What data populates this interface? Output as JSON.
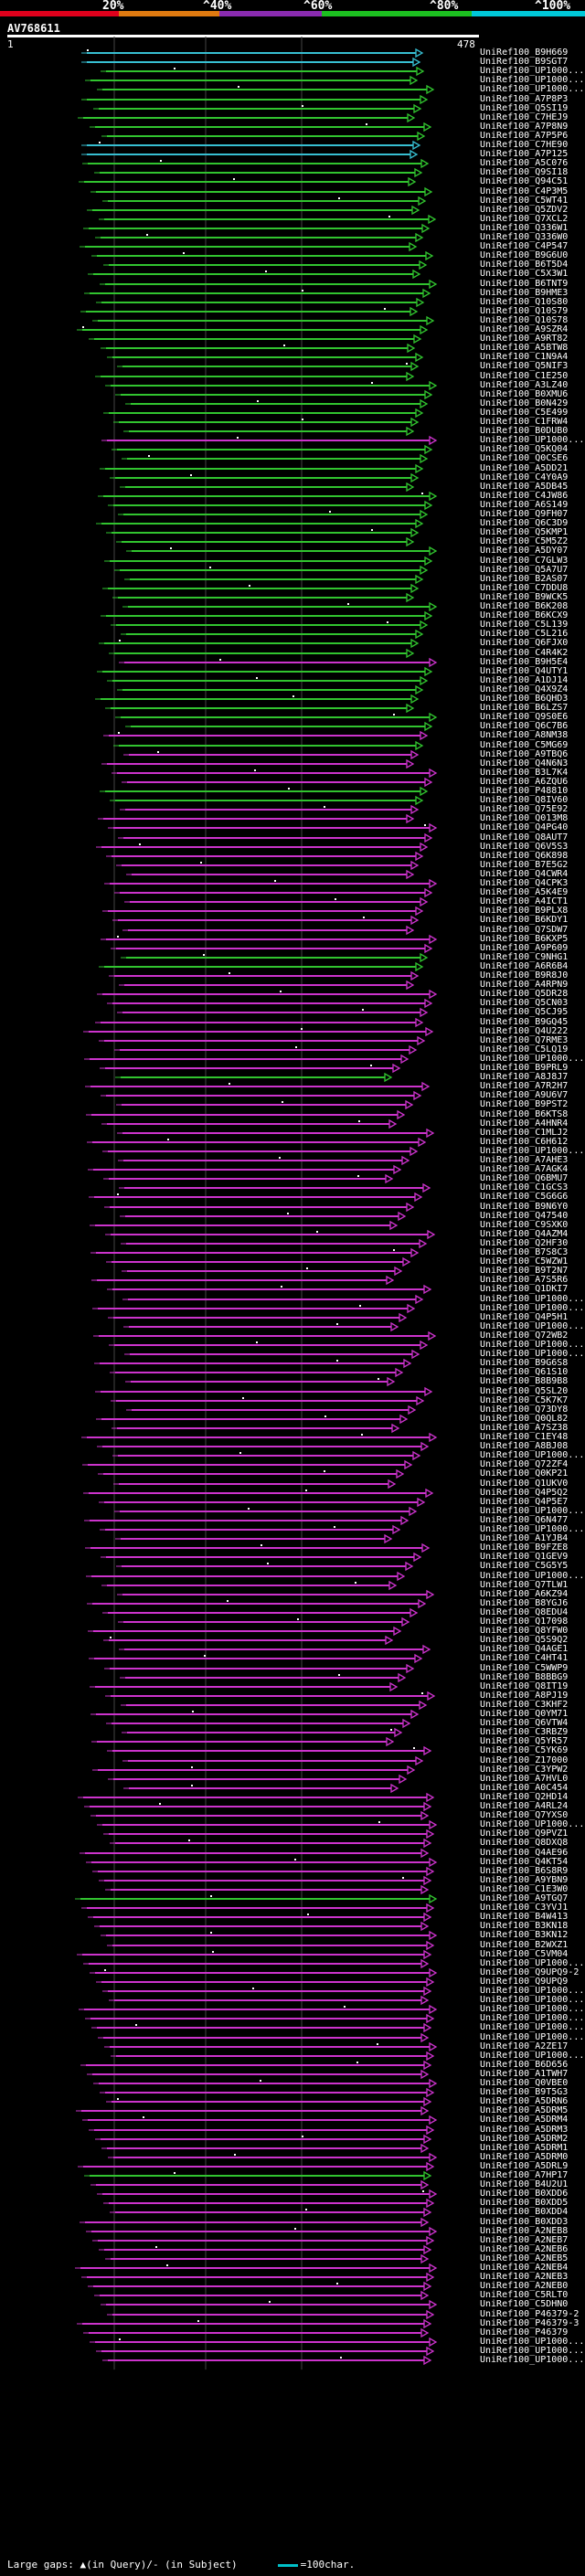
{
  "header": {
    "scale_ticks": [
      "20%",
      "^40%",
      "^60%",
      "^80%",
      "^100%"
    ],
    "band_colors": [
      "#e0001c",
      "#e07a10",
      "#8a2bb0",
      "#1cc020",
      "#00c8d8"
    ]
  },
  "query": {
    "name": "AV768611",
    "start": "1",
    "end": "478"
  },
  "legend": {
    "text": "Large gaps: ▲(in Query)/- (in Subject)",
    "scale_text": "=100char."
  },
  "colors": {
    "cyan": "#37bfd2",
    "green": "#31c42f",
    "magenta": "#cc33cc",
    "white_line": "#ffffff"
  },
  "hits": [
    {
      "label": "UniRef100_B9H669",
      "color": "cyan"
    },
    {
      "label": "UniRef100_B9SGT7",
      "color": "cyan"
    },
    {
      "label": "UniRef100_UP1000...",
      "color": "green"
    },
    {
      "label": "UniRef100_UP1000...",
      "color": "green"
    },
    {
      "label": "UniRef100_UP1000...",
      "color": "green"
    },
    {
      "label": "UniRef100_A7P8P3",
      "color": "green"
    },
    {
      "label": "UniRef100_Q5SI19",
      "color": "green"
    },
    {
      "label": "UniRef100_C7HEJ9",
      "color": "green"
    },
    {
      "label": "UniRef100_A7P8N9",
      "color": "green"
    },
    {
      "label": "UniRef100_A7P5P6",
      "color": "green"
    },
    {
      "label": "UniRef100_C7HE90",
      "color": "cyan"
    },
    {
      "label": "UniRef100_A7P125",
      "color": "cyan"
    },
    {
      "label": "UniRef100_A5C076",
      "color": "green"
    },
    {
      "label": "UniRef100_Q9SI18",
      "color": "green"
    },
    {
      "label": "UniRef100_Q94C51",
      "color": "green"
    },
    {
      "label": "UniRef100_C4P3M5",
      "color": "green"
    },
    {
      "label": "UniRef100_C5WT41",
      "color": "green"
    },
    {
      "label": "UniRef100_Q5ZDV2",
      "color": "green"
    },
    {
      "label": "UniRef100_Q7XCL2",
      "color": "green"
    },
    {
      "label": "UniRef100_Q336W1",
      "color": "green"
    },
    {
      "label": "UniRef100_Q336W0",
      "color": "green"
    },
    {
      "label": "UniRef100_C4P547",
      "color": "green"
    },
    {
      "label": "UniRef100_B9G6U0",
      "color": "green"
    },
    {
      "label": "UniRef100_B6T5D4",
      "color": "green"
    },
    {
      "label": "UniRef100_C5X3W1",
      "color": "green"
    },
    {
      "label": "UniRef100_B6TNT9",
      "color": "green"
    },
    {
      "label": "UniRef100_B9HME3",
      "color": "green"
    },
    {
      "label": "UniRef100_Q10S80",
      "color": "green"
    },
    {
      "label": "UniRef100_Q10S79",
      "color": "green"
    },
    {
      "label": "UniRef100_Q10S78",
      "color": "green"
    },
    {
      "label": "UniRef100_A9SZR4",
      "color": "green"
    },
    {
      "label": "UniRef100_A9RT82",
      "color": "green"
    },
    {
      "label": "UniRef100_A5BTW8",
      "color": "green"
    },
    {
      "label": "UniRef100_C1N9A4",
      "color": "green"
    },
    {
      "label": "UniRef100_Q5NIF3",
      "color": "green"
    },
    {
      "label": "UniRef100_C1E250",
      "color": "green"
    },
    {
      "label": "UniRef100_A3LZ40",
      "color": "green"
    },
    {
      "label": "UniRef100_B0XMU6",
      "color": "green"
    },
    {
      "label": "UniRef100_B0N429",
      "color": "green"
    },
    {
      "label": "UniRef100_C5E499",
      "color": "green"
    },
    {
      "label": "UniRef100_C1FRW4",
      "color": "green"
    },
    {
      "label": "UniRef100_B0DUB0",
      "color": "green"
    },
    {
      "label": "UniRef100_UP1000...",
      "color": "magenta"
    },
    {
      "label": "UniRef100_Q5KQ04",
      "color": "green"
    },
    {
      "label": "UniRef100_Q0CSE6",
      "color": "green"
    },
    {
      "label": "UniRef100_A5DD21",
      "color": "green"
    },
    {
      "label": "UniRef100_C4Y0A9",
      "color": "green"
    },
    {
      "label": "UniRef100_A5DB45",
      "color": "green"
    },
    {
      "label": "UniRef100_C4JW86",
      "color": "green"
    },
    {
      "label": "UniRef100_A6S149",
      "color": "green"
    },
    {
      "label": "UniRef100_Q9FH07",
      "color": "green"
    },
    {
      "label": "UniRef100_Q6C3D9",
      "color": "green"
    },
    {
      "label": "UniRef100_Q5KMP1",
      "color": "green"
    },
    {
      "label": "UniRef100_C5M5Z2",
      "color": "green"
    },
    {
      "label": "UniRef100_A5DY07",
      "color": "green"
    },
    {
      "label": "UniRef100_C7GLW3",
      "color": "green"
    },
    {
      "label": "UniRef100_Q5A7U7",
      "color": "green"
    },
    {
      "label": "UniRef100_B2AS07",
      "color": "green"
    },
    {
      "label": "UniRef100_C7DDU8",
      "color": "green"
    },
    {
      "label": "UniRef100_B9WCK5",
      "color": "green"
    },
    {
      "label": "UniRef100_B6K208",
      "color": "green"
    },
    {
      "label": "UniRef100_B6KCX9",
      "color": "green"
    },
    {
      "label": "UniRef100_C5L139",
      "color": "green"
    },
    {
      "label": "UniRef100_C5L216",
      "color": "green"
    },
    {
      "label": "UniRef100_Q6FJX0",
      "color": "green"
    },
    {
      "label": "UniRef100_C4R4K2",
      "color": "green"
    },
    {
      "label": "UniRef100_B9H5E4",
      "color": "magenta"
    },
    {
      "label": "UniRef100_Q4UTY1",
      "color": "green"
    },
    {
      "label": "UniRef100_A1DJ14",
      "color": "green"
    },
    {
      "label": "UniRef100_Q4X9Z4",
      "color": "green"
    },
    {
      "label": "UniRef100_B6QHD3",
      "color": "green"
    },
    {
      "label": "UniRef100_B6LZS7",
      "color": "green"
    },
    {
      "label": "UniRef100_Q9S0E6",
      "color": "green"
    },
    {
      "label": "UniRef100_Q6C7B6",
      "color": "green"
    },
    {
      "label": "UniRef100_A8NM38",
      "color": "magenta"
    },
    {
      "label": "UniRef100_C5MG69",
      "color": "green"
    },
    {
      "label": "UniRef100_A9TBQ6",
      "color": "magenta"
    },
    {
      "label": "UniRef100_Q4N6N3",
      "color": "magenta"
    },
    {
      "label": "UniRef100_B3L7K4",
      "color": "magenta"
    },
    {
      "label": "UniRef100_A6ZQU6",
      "color": "magenta"
    },
    {
      "label": "UniRef100_P48810",
      "color": "green"
    },
    {
      "label": "UniRef100_Q8IV60",
      "color": "green"
    },
    {
      "label": "UniRef100_Q75E92",
      "color": "magenta"
    },
    {
      "label": "UniRef100_Q013M8",
      "color": "magenta"
    },
    {
      "label": "UniRef100_Q4PG40",
      "color": "magenta"
    },
    {
      "label": "UniRef100_Q8AUT7",
      "color": "magenta"
    },
    {
      "label": "UniRef100_Q6V5S3",
      "color": "magenta"
    },
    {
      "label": "UniRef100_Q6K898",
      "color": "magenta"
    },
    {
      "label": "UniRef100_B7E5G2",
      "color": "magenta"
    },
    {
      "label": "UniRef100_Q4CWR4",
      "color": "magenta"
    },
    {
      "label": "UniRef100_Q4CPK3",
      "color": "magenta"
    },
    {
      "label": "UniRef100_A5K4E9",
      "color": "magenta"
    },
    {
      "label": "UniRef100_A4ICT1",
      "color": "magenta"
    },
    {
      "label": "UniRef100_B9PLX8",
      "color": "magenta"
    },
    {
      "label": "UniRef100_B6KDY1",
      "color": "magenta"
    },
    {
      "label": "UniRef100_Q7SDW7",
      "color": "magenta"
    },
    {
      "label": "UniRef100_B6KXP5",
      "color": "magenta"
    },
    {
      "label": "UniRef100_A9P609",
      "color": "magenta"
    },
    {
      "label": "UniRef100_C9NHG1",
      "color": "green"
    },
    {
      "label": "UniRef100_A6R6B4",
      "color": "green"
    },
    {
      "label": "UniRef100_B9R8J0",
      "color": "magenta"
    },
    {
      "label": "UniRef100_A4RPN9",
      "color": "magenta"
    },
    {
      "label": "UniRef100_Q5DR28",
      "color": "magenta"
    },
    {
      "label": "UniRef100_Q5CN03",
      "color": "magenta"
    },
    {
      "label": "UniRef100_Q5CJ95",
      "color": "magenta"
    },
    {
      "label": "UniRef100_B9GQ45",
      "color": "magenta"
    },
    {
      "label": "UniRef100_Q4U222",
      "color": "magenta"
    },
    {
      "label": "UniRef100_Q7RME3",
      "color": "magenta"
    },
    {
      "label": "UniRef100_C5LQ19",
      "color": "magenta"
    },
    {
      "label": "UniRef100_UP1000...",
      "color": "magenta"
    },
    {
      "label": "UniRef100_B9PRL9",
      "color": "magenta"
    },
    {
      "label": "UniRef100_A8J8J7",
      "color": "green"
    },
    {
      "label": "UniRef100_A7R2H7",
      "color": "magenta"
    },
    {
      "label": "UniRef100_A9U6V7",
      "color": "magenta"
    },
    {
      "label": "UniRef100_B9PST2",
      "color": "magenta"
    },
    {
      "label": "UniRef100_B6KTS8",
      "color": "magenta"
    },
    {
      "label": "UniRef100_A4HNR4",
      "color": "magenta"
    },
    {
      "label": "UniRef100_C1MLJ2",
      "color": "magenta"
    },
    {
      "label": "UniRef100_C6H612",
      "color": "magenta"
    },
    {
      "label": "UniRef100_UP1000...",
      "color": "magenta"
    },
    {
      "label": "UniRef100_A7AHE3",
      "color": "magenta"
    },
    {
      "label": "UniRef100_A7AGK4",
      "color": "magenta"
    },
    {
      "label": "UniRef100_Q6BMU7",
      "color": "magenta"
    },
    {
      "label": "UniRef100_C1GCS3",
      "color": "magenta"
    },
    {
      "label": "UniRef100_C5G6G6",
      "color": "magenta"
    },
    {
      "label": "UniRef100_B9N6Y0",
      "color": "magenta"
    },
    {
      "label": "UniRef100_Q47540",
      "color": "magenta"
    },
    {
      "label": "UniRef100_C9SXK0",
      "color": "magenta"
    },
    {
      "label": "UniRef100_Q4AZM4",
      "color": "magenta"
    },
    {
      "label": "UniRef100_Q2HF30",
      "color": "magenta"
    },
    {
      "label": "UniRef100_B7S8C3",
      "color": "magenta"
    },
    {
      "label": "UniRef100_C5WZW1",
      "color": "magenta"
    },
    {
      "label": "UniRef100_B9T2N7",
      "color": "magenta"
    },
    {
      "label": "UniRef100_A7S5R6",
      "color": "magenta"
    },
    {
      "label": "UniRef100_Q1DKI7",
      "color": "magenta"
    },
    {
      "label": "UniRef100_UP1000...",
      "color": "magenta"
    },
    {
      "label": "UniRef100_UP1000...",
      "color": "magenta"
    },
    {
      "label": "UniRef100_Q4P5H1",
      "color": "magenta"
    },
    {
      "label": "UniRef100_UP1000...",
      "color": "magenta"
    },
    {
      "label": "UniRef100_Q72WB2",
      "color": "magenta"
    },
    {
      "label": "UniRef100_UP1000...",
      "color": "magenta"
    },
    {
      "label": "UniRef100_UP1000...",
      "color": "magenta"
    },
    {
      "label": "UniRef100_B9G6S8",
      "color": "magenta"
    },
    {
      "label": "UniRef100_Q61S10",
      "color": "magenta"
    },
    {
      "label": "UniRef100_B8B9B8",
      "color": "magenta"
    },
    {
      "label": "UniRef100_Q5SL20",
      "color": "magenta"
    },
    {
      "label": "UniRef100_C5K7K7",
      "color": "magenta"
    },
    {
      "label": "UniRef100_Q73DY8",
      "color": "magenta"
    },
    {
      "label": "UniRef100_Q0QL82",
      "color": "magenta"
    },
    {
      "label": "UniRef100_A7SZ38",
      "color": "magenta"
    },
    {
      "label": "UniRef100_C1EY48",
      "color": "magenta"
    },
    {
      "label": "UniRef100_A8BJ08",
      "color": "magenta"
    },
    {
      "label": "UniRef100_UP1000...",
      "color": "magenta"
    },
    {
      "label": "UniRef100_Q72ZF4",
      "color": "magenta"
    },
    {
      "label": "UniRef100_Q0KP21",
      "color": "magenta"
    },
    {
      "label": "UniRef100_Q1UKV0",
      "color": "magenta"
    },
    {
      "label": "UniRef100_Q4P5Q2",
      "color": "magenta"
    },
    {
      "label": "UniRef100_Q4P5E7",
      "color": "magenta"
    },
    {
      "label": "UniRef100_UP1000...",
      "color": "magenta"
    },
    {
      "label": "UniRef100_Q6N477",
      "color": "magenta"
    },
    {
      "label": "UniRef100_UP1000...",
      "color": "magenta"
    },
    {
      "label": "UniRef100_A1YJB4",
      "color": "magenta"
    },
    {
      "label": "UniRef100_B9FZE8",
      "color": "magenta"
    },
    {
      "label": "UniRef100_Q1GEV9",
      "color": "magenta"
    },
    {
      "label": "UniRef100_C5G5Y5",
      "color": "magenta"
    },
    {
      "label": "UniRef100_UP1000...",
      "color": "magenta"
    },
    {
      "label": "UniRef100_Q7TLW1",
      "color": "magenta"
    },
    {
      "label": "UniRef100_A6KZ94",
      "color": "magenta"
    },
    {
      "label": "UniRef100_B8YGJ6",
      "color": "magenta"
    },
    {
      "label": "UniRef100_Q8EDU4",
      "color": "magenta"
    },
    {
      "label": "UniRef100_Q17098",
      "color": "magenta"
    },
    {
      "label": "UniRef100_Q8YFW0",
      "color": "magenta"
    },
    {
      "label": "UniRef100_Q5S9Q2",
      "color": "magenta"
    },
    {
      "label": "UniRef100_Q4AGE1",
      "color": "magenta"
    },
    {
      "label": "UniRef100_C4HT41",
      "color": "magenta"
    },
    {
      "label": "UniRef100_C5WWP9",
      "color": "magenta"
    },
    {
      "label": "UniRef100_B8BBG9",
      "color": "magenta"
    },
    {
      "label": "UniRef100_Q8IT19",
      "color": "magenta"
    },
    {
      "label": "UniRef100_A8PJ19",
      "color": "magenta"
    },
    {
      "label": "UniRef100_C3KHF2",
      "color": "magenta"
    },
    {
      "label": "UniRef100_Q0YM71",
      "color": "magenta"
    },
    {
      "label": "UniRef100_Q6VTW4",
      "color": "magenta"
    },
    {
      "label": "UniRef100_C3RBZ9",
      "color": "magenta"
    },
    {
      "label": "UniRef100_Q5YR57",
      "color": "magenta"
    },
    {
      "label": "UniRef100_C5YK69",
      "color": "magenta"
    },
    {
      "label": "UniRef100_Z17000",
      "color": "magenta"
    },
    {
      "label": "UniRef100_C3YPW2",
      "color": "magenta"
    },
    {
      "label": "UniRef100_A7HVL0",
      "color": "magenta"
    },
    {
      "label": "UniRef100_A0C454",
      "color": "magenta"
    },
    {
      "label": "UniRef100_Q2HD14",
      "color": "magenta"
    },
    {
      "label": "UniRef100_A4RL24",
      "color": "magenta"
    },
    {
      "label": "UniRef100_Q7YXS0",
      "color": "magenta"
    },
    {
      "label": "UniRef100_UP1000...",
      "color": "magenta"
    },
    {
      "label": "UniRef100_Q9PVZ1",
      "color": "magenta"
    },
    {
      "label": "UniRef100_Q8DXQ8",
      "color": "magenta"
    },
    {
      "label": "UniRef100_Q4AE96",
      "color": "magenta"
    },
    {
      "label": "UniRef100_Q4KT54",
      "color": "magenta"
    },
    {
      "label": "UniRef100_B6S8R9",
      "color": "magenta"
    },
    {
      "label": "UniRef100_A9YBN9",
      "color": "magenta"
    },
    {
      "label": "UniRef100_C1E3W0",
      "color": "magenta"
    },
    {
      "label": "UniRef100_A9TGQ7",
      "color": "green"
    },
    {
      "label": "UniRef100_C3YVJ1",
      "color": "magenta"
    },
    {
      "label": "UniRef100_B4W413",
      "color": "magenta"
    },
    {
      "label": "UniRef100_B3KN18",
      "color": "magenta"
    },
    {
      "label": "UniRef100_B3KN12",
      "color": "magenta"
    },
    {
      "label": "UniRef100_B2WXZ1",
      "color": "magenta"
    },
    {
      "label": "UniRef100_C5VM04",
      "color": "magenta"
    },
    {
      "label": "UniRef100_UP1000...",
      "color": "magenta"
    },
    {
      "label": "UniRef100_Q9UPQ9-2",
      "color": "magenta"
    },
    {
      "label": "UniRef100_Q9UPQ9",
      "color": "magenta"
    },
    {
      "label": "UniRef100_UP1000...",
      "color": "magenta"
    },
    {
      "label": "UniRef100_UP1000...",
      "color": "magenta"
    },
    {
      "label": "UniRef100_UP1000...",
      "color": "magenta"
    },
    {
      "label": "UniRef100_UP1000...",
      "color": "magenta"
    },
    {
      "label": "UniRef100_UP1000...",
      "color": "magenta"
    },
    {
      "label": "UniRef100_UP1000...",
      "color": "magenta"
    },
    {
      "label": "UniRef100_A2ZE17",
      "color": "magenta"
    },
    {
      "label": "UniRef100_UP1000...",
      "color": "magenta"
    },
    {
      "label": "UniRef100_B6D656",
      "color": "magenta"
    },
    {
      "label": "UniRef100_A1TWH7",
      "color": "magenta"
    },
    {
      "label": "UniRef100_Q0VBE0",
      "color": "magenta"
    },
    {
      "label": "UniRef100_B9T5G3",
      "color": "magenta"
    },
    {
      "label": "UniRef100_A5DRN6",
      "color": "magenta"
    },
    {
      "label": "UniRef100_A5DRM5",
      "color": "magenta"
    },
    {
      "label": "UniRef100_A5DRM4",
      "color": "magenta"
    },
    {
      "label": "UniRef100_A5DRM3",
      "color": "magenta"
    },
    {
      "label": "UniRef100_A5DRM2",
      "color": "magenta"
    },
    {
      "label": "UniRef100_A5DRM1",
      "color": "magenta"
    },
    {
      "label": "UniRef100_A5DRM0",
      "color": "magenta"
    },
    {
      "label": "UniRef100_A5DRL9",
      "color": "magenta"
    },
    {
      "label": "UniRef100_A7HP17",
      "color": "green"
    },
    {
      "label": "UniRef100_B4U2U1",
      "color": "magenta"
    },
    {
      "label": "UniRef100_B0XDD6",
      "color": "magenta"
    },
    {
      "label": "UniRef100_B0XDD5",
      "color": "magenta"
    },
    {
      "label": "UniRef100_B0XDD4",
      "color": "magenta"
    },
    {
      "label": "UniRef100_B0XDD3",
      "color": "magenta"
    },
    {
      "label": "UniRef100_A2NEB8",
      "color": "magenta"
    },
    {
      "label": "UniRef100_A2NEB7",
      "color": "magenta"
    },
    {
      "label": "UniRef100_A2NEB6",
      "color": "magenta"
    },
    {
      "label": "UniRef100_A2NEB5",
      "color": "magenta"
    },
    {
      "label": "UniRef100_A2NEB4",
      "color": "magenta"
    },
    {
      "label": "UniRef100_A2NEB3",
      "color": "magenta"
    },
    {
      "label": "UniRef100_A2NEB0",
      "color": "magenta"
    },
    {
      "label": "UniRef100_C5RLT0",
      "color": "magenta"
    },
    {
      "label": "UniRef100_C5DHN0",
      "color": "magenta"
    },
    {
      "label": "UniRef100_P46379-2",
      "color": "magenta"
    },
    {
      "label": "UniRef100_P46379-3",
      "color": "magenta"
    },
    {
      "label": "UniRef100_P46379",
      "color": "magenta"
    },
    {
      "label": "UniRef100_UP1000...",
      "color": "magenta"
    },
    {
      "label": "UniRef100_UP1000...",
      "color": "magenta"
    },
    {
      "label": "UniRef100_UP1000...",
      "color": "magenta"
    }
  ]
}
